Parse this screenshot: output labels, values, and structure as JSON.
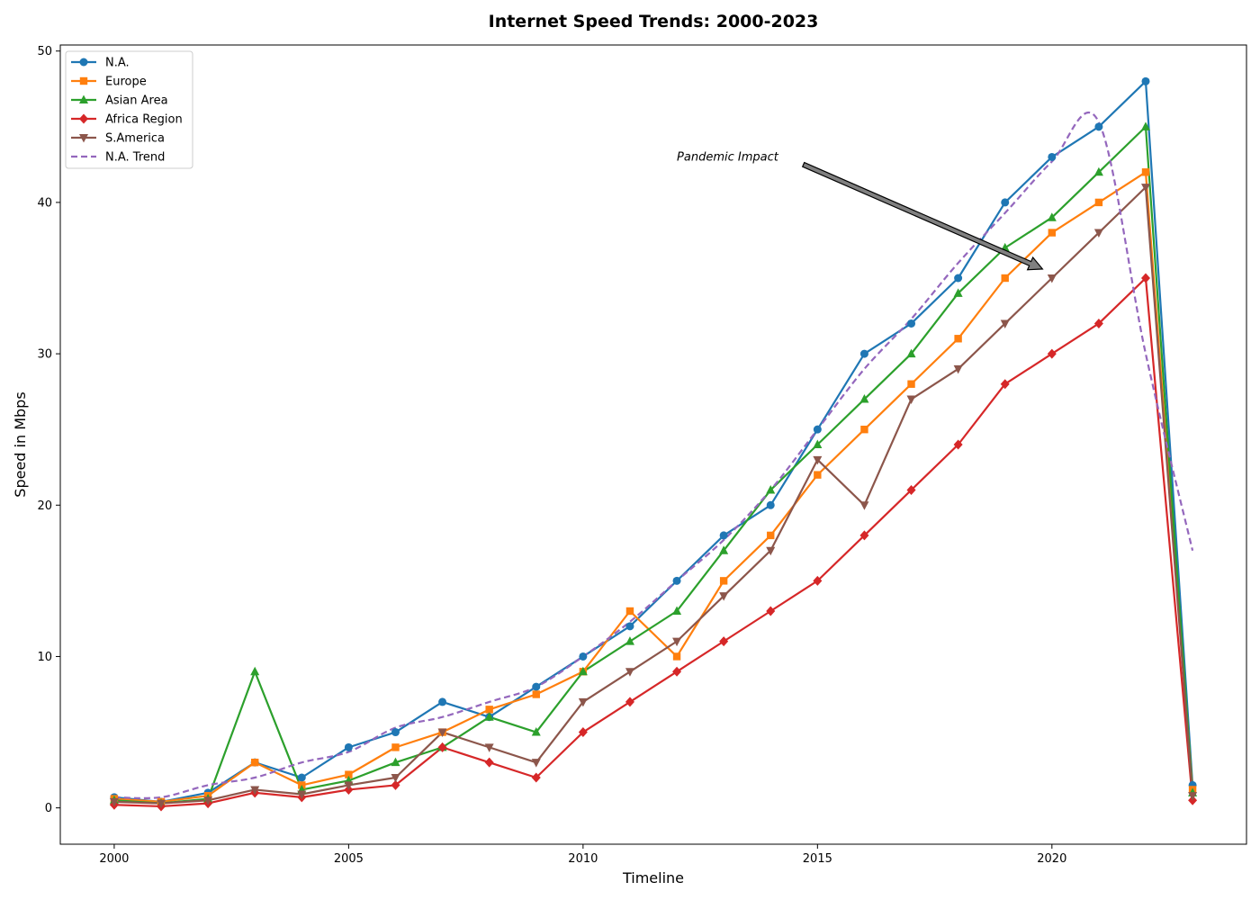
{
  "chart_data": {
    "type": "line",
    "title": "Internet Speed Trends: 2000-2023",
    "xlabel": "Timeline",
    "ylabel": "Speed in Mbps",
    "x": [
      2000,
      2001,
      2002,
      2003,
      2004,
      2005,
      2006,
      2007,
      2008,
      2009,
      2010,
      2011,
      2012,
      2013,
      2014,
      2015,
      2016,
      2017,
      2018,
      2019,
      2020,
      2021,
      2022,
      2023
    ],
    "xlim": [
      1998.85,
      2024.15
    ],
    "ylim": [
      -2.4,
      50.4
    ],
    "xticks": [
      2000,
      2005,
      2010,
      2015,
      2020
    ],
    "yticks": [
      0,
      10,
      20,
      30,
      40,
      50
    ],
    "legend_position": "upper-left",
    "grid": false,
    "series": [
      {
        "name": "N.A.",
        "color": "#1f77b4",
        "marker": "circle",
        "style": "solid",
        "values": [
          0.7,
          0.4,
          1.0,
          3.0,
          2.0,
          4.0,
          5.0,
          7.0,
          6.0,
          8.0,
          10.0,
          12.0,
          15.0,
          18.0,
          20.0,
          25.0,
          30.0,
          32.0,
          35.0,
          40.0,
          43.0,
          45.0,
          48.0,
          1.5
        ]
      },
      {
        "name": "Europe",
        "color": "#ff7f0e",
        "marker": "square",
        "style": "solid",
        "values": [
          0.6,
          0.4,
          0.8,
          3.0,
          1.5,
          2.2,
          4.0,
          5.0,
          6.5,
          7.5,
          9.0,
          13.0,
          10.0,
          15.0,
          18.0,
          22.0,
          25.0,
          28.0,
          31.0,
          35.0,
          38.0,
          40.0,
          42.0,
          1.2
        ]
      },
      {
        "name": "Asian Area",
        "color": "#2ca02c",
        "marker": "triangle-up",
        "style": "solid",
        "values": [
          0.5,
          0.3,
          0.6,
          9.0,
          1.2,
          1.8,
          3.0,
          4.0,
          6.0,
          5.0,
          9.0,
          11.0,
          13.0,
          17.0,
          21.0,
          24.0,
          27.0,
          30.0,
          34.0,
          37.0,
          39.0,
          42.0,
          45.0,
          1.0
        ]
      },
      {
        "name": "Africa Region",
        "color": "#d62728",
        "marker": "diamond",
        "style": "solid",
        "values": [
          0.2,
          0.1,
          0.3,
          1.0,
          0.7,
          1.2,
          1.5,
          4.0,
          3.0,
          2.0,
          5.0,
          7.0,
          9.0,
          11.0,
          13.0,
          15.0,
          18.0,
          21.0,
          24.0,
          28.0,
          30.0,
          32.0,
          35.0,
          0.5
        ]
      },
      {
        "name": "S.America",
        "color": "#8c564b",
        "marker": "triangle-down",
        "style": "solid",
        "values": [
          0.4,
          0.3,
          0.5,
          1.2,
          0.9,
          1.5,
          2.0,
          5.0,
          4.0,
          3.0,
          7.0,
          9.0,
          11.0,
          14.0,
          17.0,
          23.0,
          20.0,
          27.0,
          29.0,
          32.0,
          35.0,
          38.0,
          41.0,
          0.8
        ]
      },
      {
        "name": "N.A. Trend",
        "color": "#9467bd",
        "marker": "none",
        "style": "dashed",
        "smooth": true,
        "values": [
          0.7,
          0.7,
          1.5,
          2.0,
          3.0,
          3.7,
          5.3,
          6.0,
          7.0,
          8.0,
          10.0,
          12.3,
          15.0,
          17.7,
          21.0,
          25.0,
          29.0,
          32.3,
          36.0,
          39.3,
          42.7,
          45.3,
          30.0,
          17.0
        ]
      }
    ],
    "annotations": [
      {
        "text": "Pandemic Impact",
        "arrow_from": [
          2014.7,
          42.5
        ],
        "arrow_to": [
          2019.8,
          35.6
        ],
        "text_anchor": [
          2012.0,
          43.0
        ]
      }
    ]
  }
}
